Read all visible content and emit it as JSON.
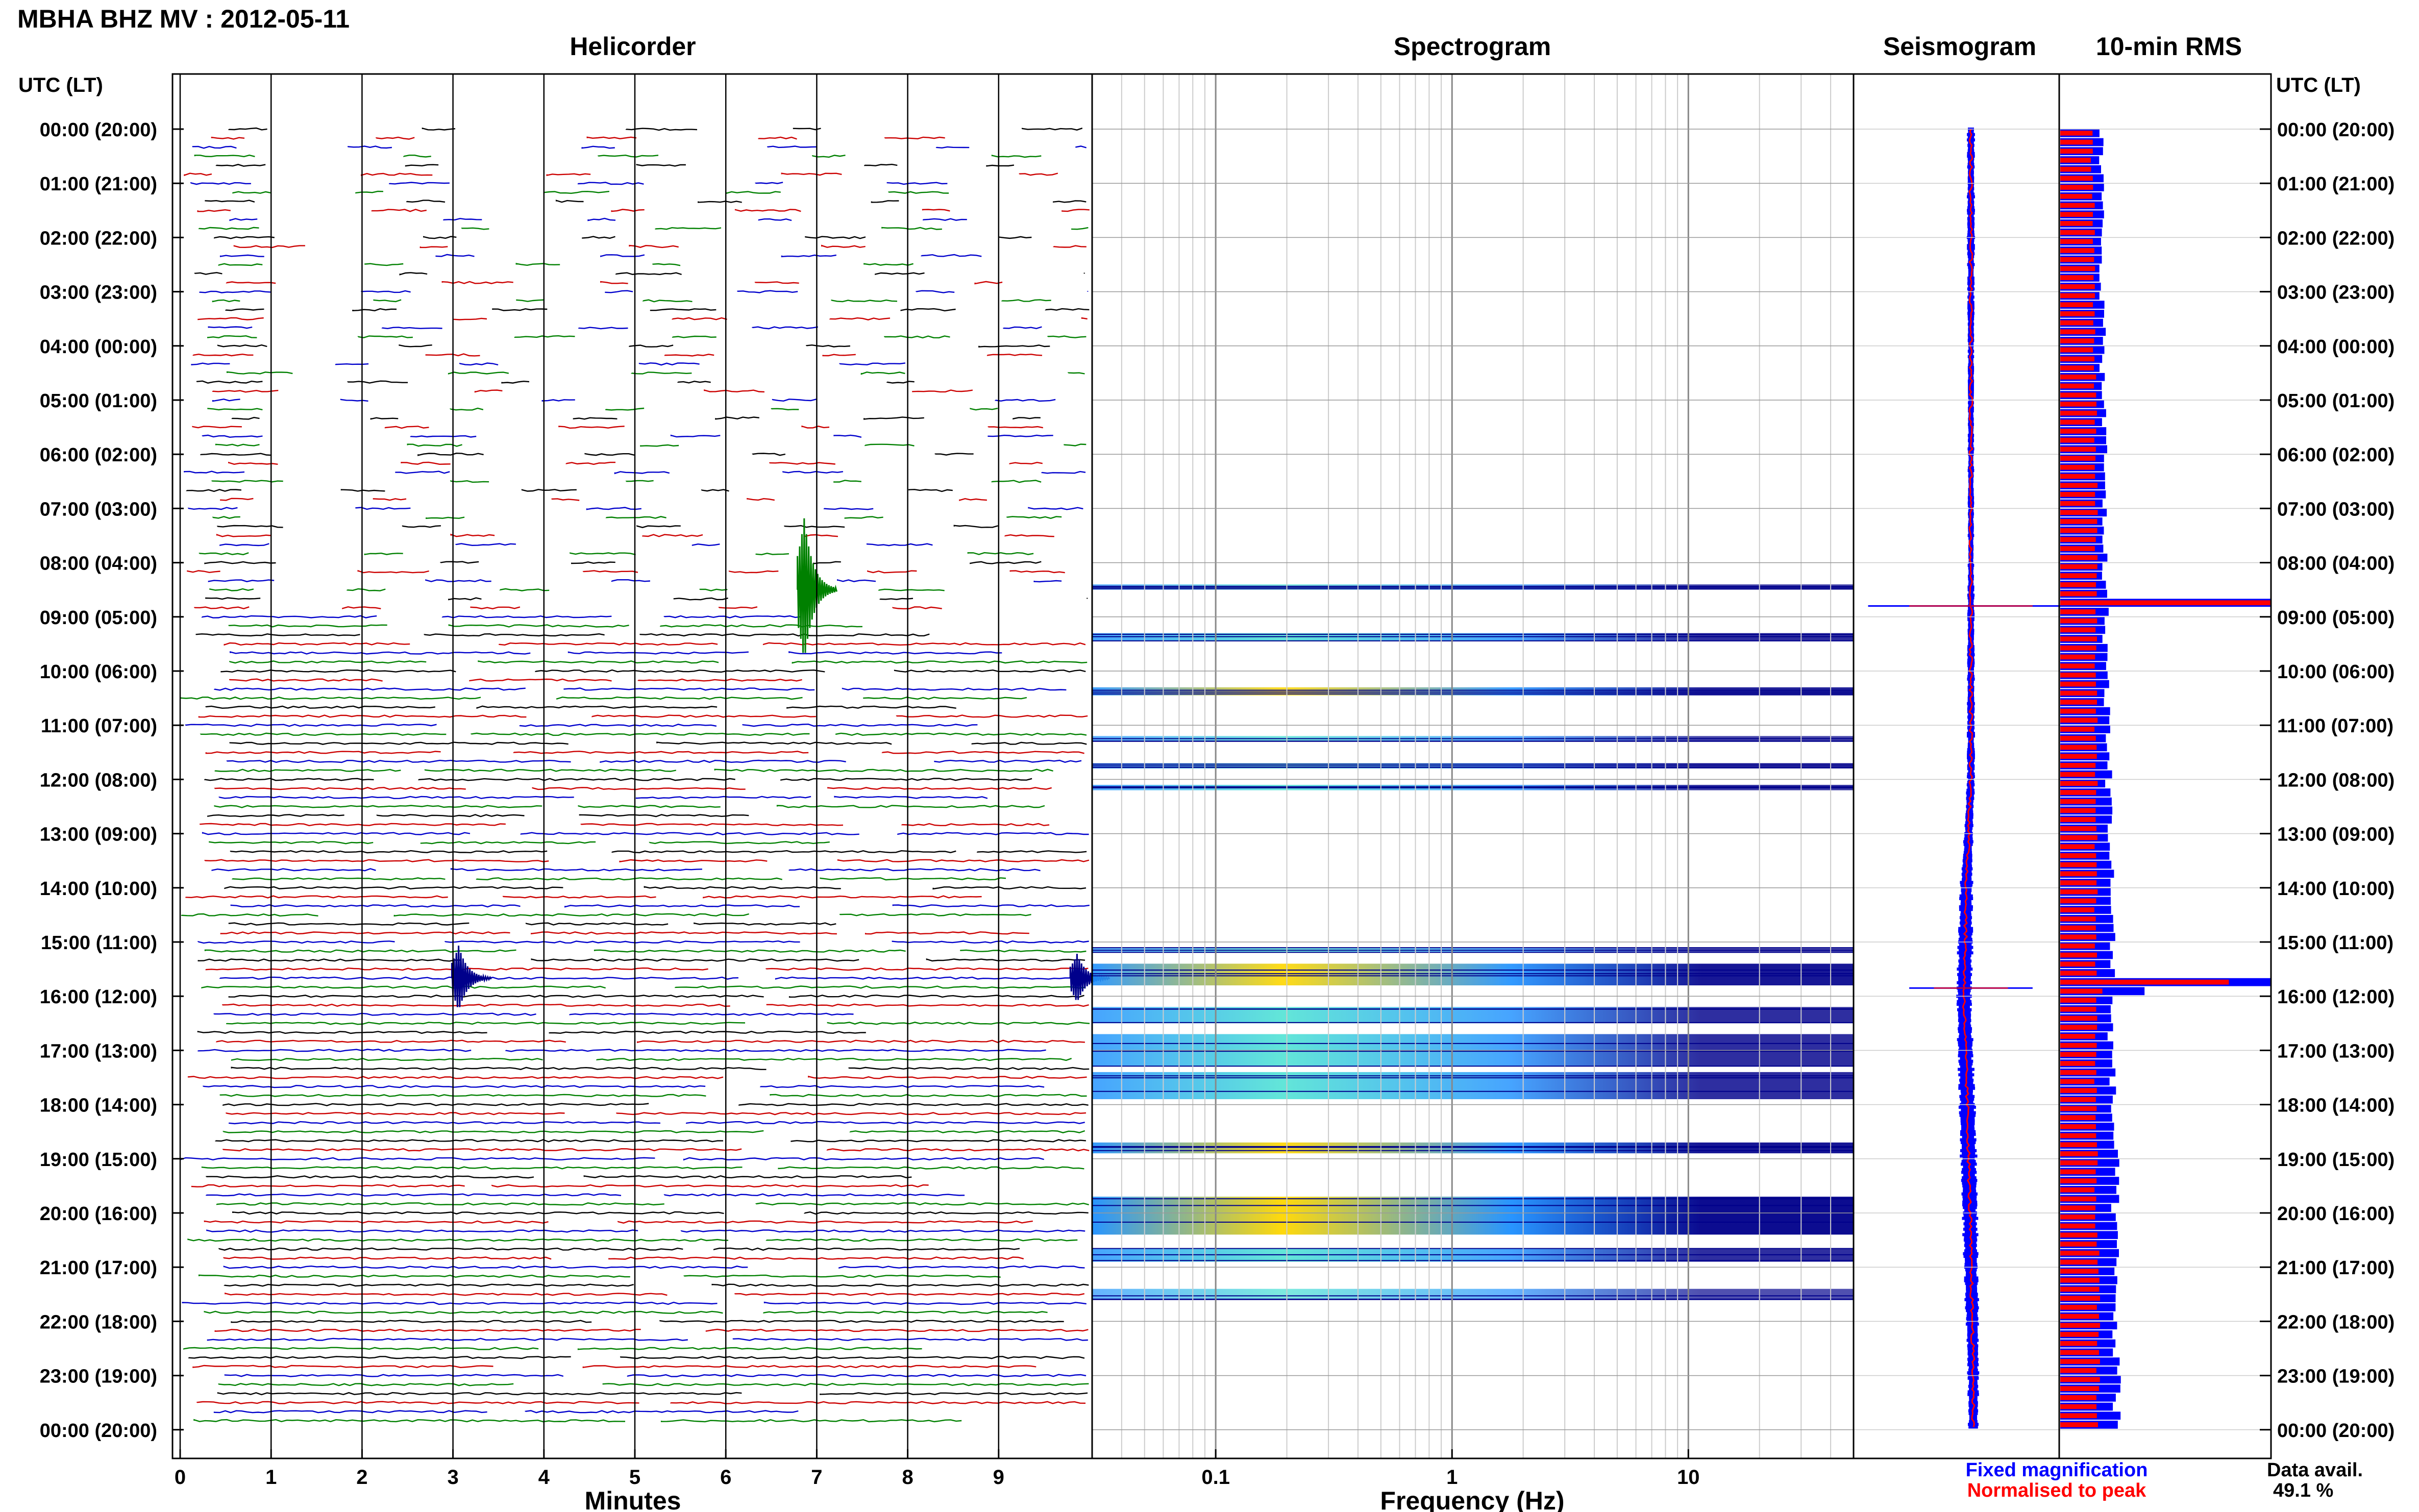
{
  "header": {
    "title": "MBHA BHZ MV : 2012-05-11"
  },
  "panels": {
    "helicorder": "Helicorder",
    "spectrogram": "Spectrogram",
    "seismogram": "Seismogram",
    "rms": "10-min RMS"
  },
  "utc_label_left": "UTC (LT)",
  "utc_label_right": "UTC (LT)",
  "time_labels": [
    "00:00 (20:00)",
    "01:00 (21:00)",
    "02:00 (22:00)",
    "03:00 (23:00)",
    "04:00 (00:00)",
    "05:00 (01:00)",
    "06:00 (02:00)",
    "07:00 (03:00)",
    "08:00 (04:00)",
    "09:00 (05:00)",
    "10:00 (06:00)",
    "11:00 (07:00)",
    "12:00 (08:00)",
    "13:00 (09:00)",
    "14:00 (10:00)",
    "15:00 (11:00)",
    "16:00 (12:00)",
    "17:00 (13:00)",
    "18:00 (14:00)",
    "19:00 (15:00)",
    "20:00 (16:00)",
    "21:00 (17:00)",
    "22:00 (18:00)",
    "23:00 (19:00)",
    "00:00 (20:00)"
  ],
  "helicorder_xlabel": "Minutes",
  "spectrogram_xlabel": "Frequency (Hz)",
  "legend": {
    "fixed": "Fixed magnification",
    "normalised": "Normalised to peak",
    "fixed_color": "#0000ff",
    "normalised_color": "#ff0000"
  },
  "data_avail": {
    "label": "Data avail.",
    "value": "49.1 %"
  },
  "colors": {
    "trace_cycle": [
      "#000000",
      "#cc0000",
      "#0000cc",
      "#008000"
    ],
    "spectrogram_dark": "#00008b",
    "spectrogram_band": "#1e90ff",
    "spectrogram_hot": "#ffd700",
    "rms_fixed": "#0000ff",
    "rms_normalised": "#ff0000"
  },
  "chart_data": [
    {
      "type": "line",
      "panel": "Helicorder",
      "xlabel": "Minutes",
      "x_ticks": [
        "0",
        "1",
        "2",
        "3",
        "4",
        "5",
        "6",
        "7",
        "8",
        "9"
      ],
      "xlim": [
        0,
        10
      ],
      "rows_per_hour": 6,
      "events": [
        {
          "hour": 8.5,
          "minute": 6.9,
          "amplitude": 3.5,
          "color": "#008000"
        },
        {
          "hour": 15.67,
          "minute": 3.1,
          "amplitude": 1.6,
          "color": "#00008b"
        },
        {
          "hour": 15.67,
          "minute": 9.9,
          "amplitude": 1.2,
          "color": "#00008b"
        }
      ]
    },
    {
      "type": "heatmap",
      "panel": "Spectrogram",
      "xlabel": "Frequency (Hz)",
      "x_scale": "log",
      "x_ticks": [
        "0.1",
        "1",
        "10"
      ],
      "x_tick_values": [
        0.1,
        1,
        10
      ],
      "xlim": [
        0.03,
        50
      ],
      "bands_hours": [
        {
          "start": 8.4,
          "end": 8.5,
          "intensity": 0.3
        },
        {
          "start": 9.3,
          "end": 9.45,
          "intensity": 0.6
        },
        {
          "start": 10.3,
          "end": 10.45,
          "intensity": 0.7
        },
        {
          "start": 11.2,
          "end": 11.3,
          "intensity": 0.4
        },
        {
          "start": 11.7,
          "end": 11.8,
          "intensity": 0.4
        },
        {
          "start": 12.1,
          "end": 12.2,
          "intensity": 0.5
        },
        {
          "start": 15.1,
          "end": 15.2,
          "intensity": 0.4
        },
        {
          "start": 15.4,
          "end": 15.8,
          "intensity": 0.8
        },
        {
          "start": 16.2,
          "end": 16.5,
          "intensity": 0.6
        },
        {
          "start": 16.7,
          "end": 17.3,
          "intensity": 0.6
        },
        {
          "start": 17.4,
          "end": 17.9,
          "intensity": 0.6
        },
        {
          "start": 18.7,
          "end": 18.9,
          "intensity": 0.8
        },
        {
          "start": 19.7,
          "end": 20.4,
          "intensity": 0.9
        },
        {
          "start": 20.65,
          "end": 20.9,
          "intensity": 0.6
        },
        {
          "start": 21.4,
          "end": 21.6,
          "intensity": 0.3
        }
      ]
    },
    {
      "type": "line",
      "panel": "Seismogram",
      "hours": [
        0,
        2,
        4,
        6,
        8,
        9,
        10,
        12,
        13,
        14,
        15,
        16,
        17,
        18,
        19,
        20,
        21,
        22,
        23,
        24
      ],
      "fixed_width": [
        0.15,
        0.15,
        0.12,
        0.12,
        0.12,
        0.14,
        0.15,
        0.15,
        0.18,
        0.25,
        0.3,
        0.3,
        0.3,
        0.32,
        0.32,
        0.3,
        0.28,
        0.26,
        0.22,
        0.2
      ],
      "centre_offset": [
        0,
        0,
        0,
        0,
        0,
        0,
        0,
        0,
        -0.05,
        -0.1,
        -0.12,
        -0.15,
        -0.12,
        -0.08,
        -0.05,
        -0.02,
        0,
        0.03,
        0.05,
        0.05
      ],
      "spikes": [
        {
          "hour": 8.8,
          "width": 1.0
        },
        {
          "hour": 15.85,
          "width": 0.6
        }
      ]
    },
    {
      "type": "bar",
      "panel": "10-min RMS",
      "orientation": "horizontal",
      "bars_per_hour": 6,
      "hours": [
        0,
        2,
        4,
        6,
        8,
        10,
        12,
        13,
        14,
        15,
        16,
        17,
        18,
        19,
        20,
        21,
        22,
        23,
        24
      ],
      "fixed_profile": [
        0.19,
        0.2,
        0.2,
        0.21,
        0.21,
        0.22,
        0.23,
        0.24,
        0.24,
        0.25,
        0.25,
        0.24,
        0.25,
        0.26,
        0.26,
        0.26,
        0.26,
        0.27,
        0.27
      ],
      "normalised_profile": [
        0.15,
        0.16,
        0.16,
        0.17,
        0.17,
        0.17,
        0.17,
        0.17,
        0.17,
        0.17,
        0.17,
        0.17,
        0.17,
        0.17,
        0.17,
        0.18,
        0.18,
        0.18,
        0.18
      ],
      "peaks": [
        {
          "hour": 8.8,
          "fixed": 1.0,
          "normalised": 1.0
        },
        {
          "hour": 15.8,
          "fixed": 1.0,
          "normalised": 0.8
        },
        {
          "hour": 15.95,
          "fixed": 0.4,
          "normalised": 0.2
        }
      ]
    }
  ]
}
